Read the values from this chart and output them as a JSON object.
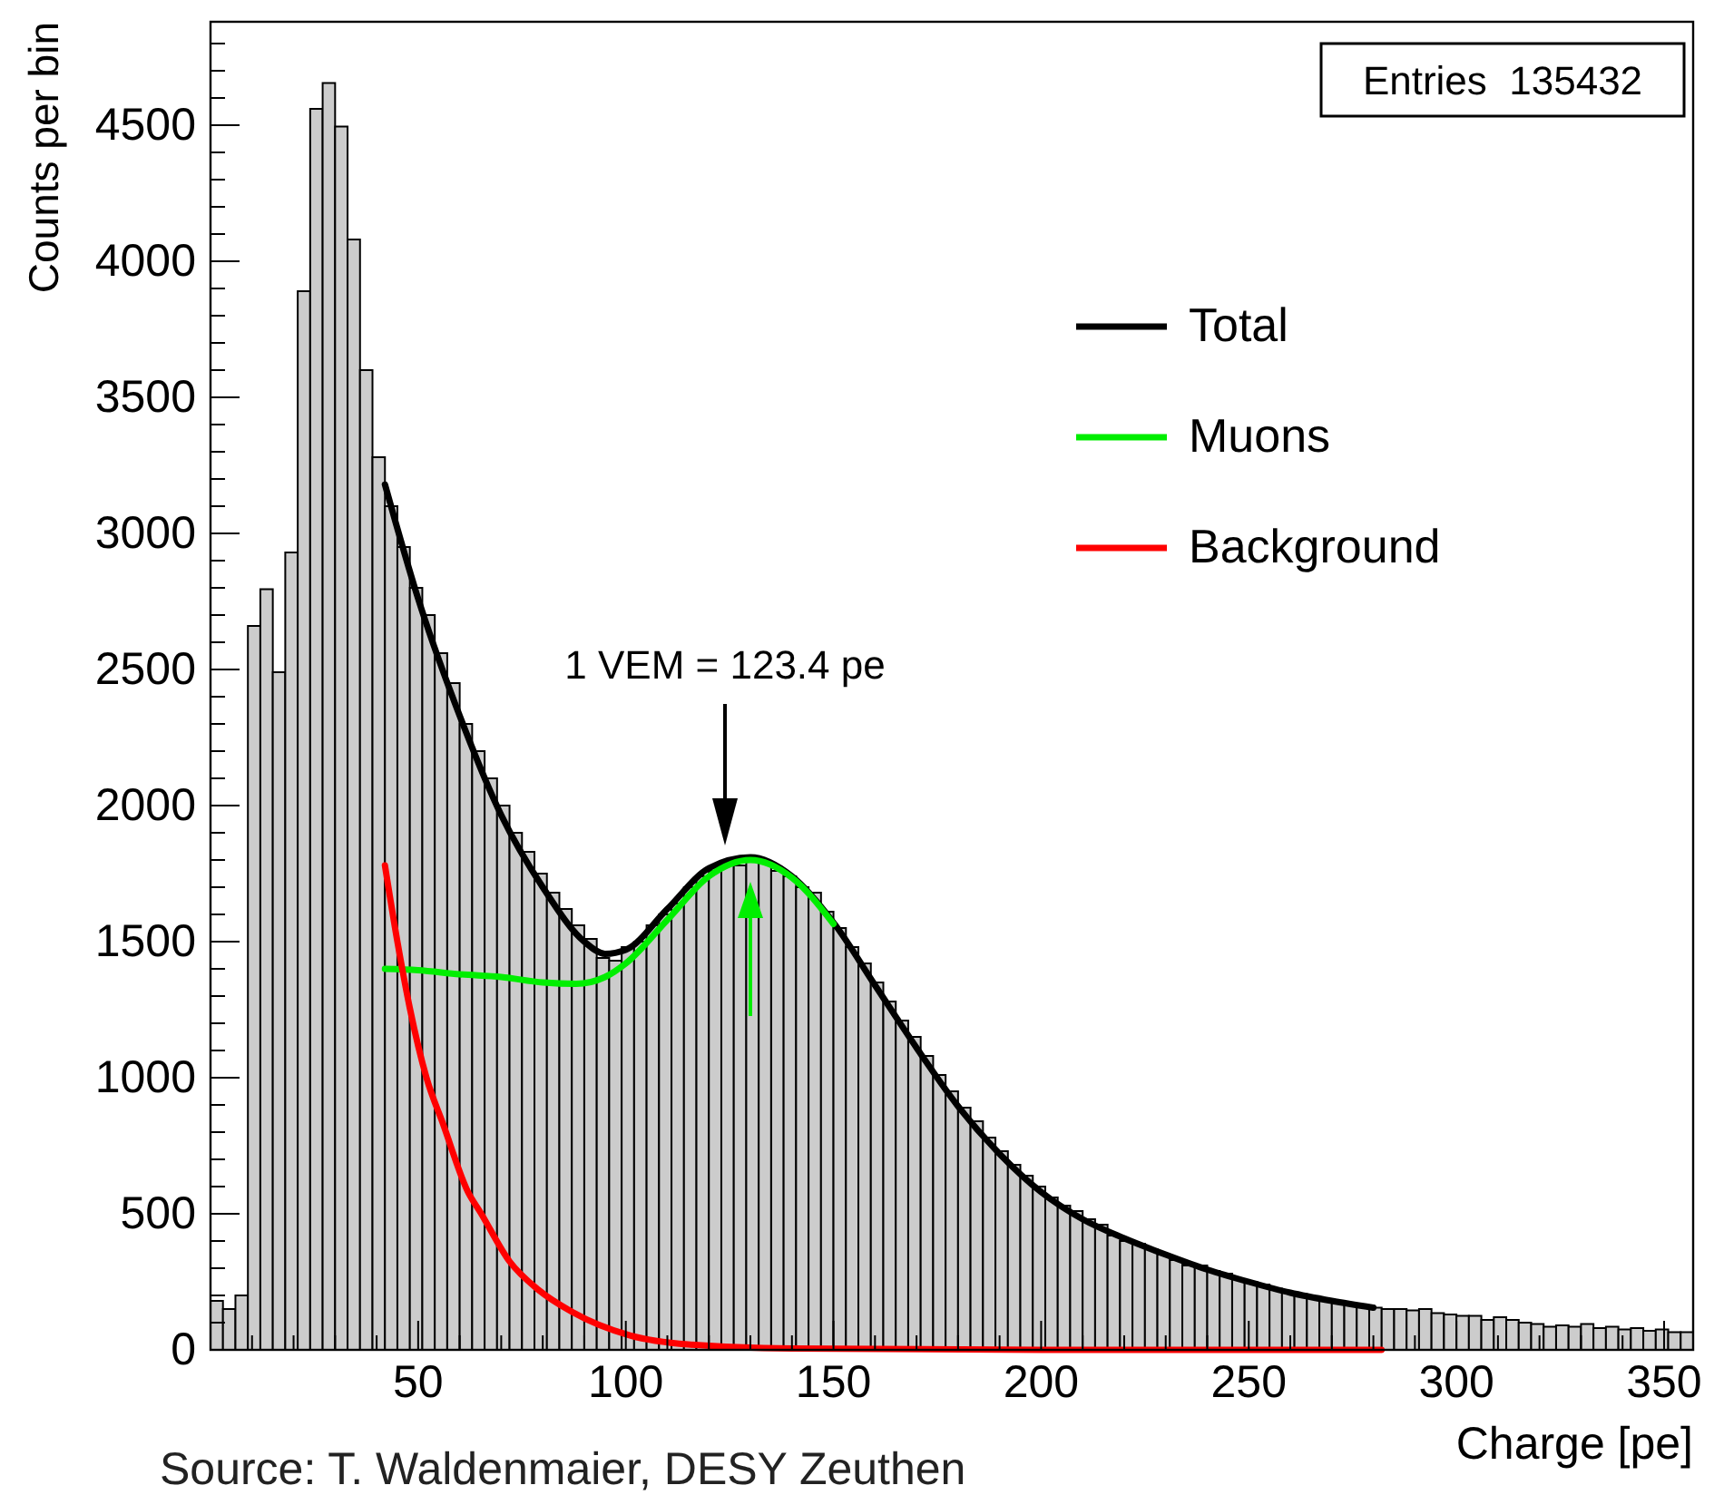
{
  "chart_data": {
    "type": "histogram",
    "xlabel": "Charge [pe]",
    "ylabel": "Counts per bin",
    "bins": [
      0,
      3,
      6,
      9,
      12,
      15,
      18,
      21,
      24,
      27,
      30,
      33,
      36,
      39,
      42,
      45,
      48,
      51,
      54,
      57,
      60,
      63,
      66,
      69,
      72,
      75,
      78,
      81,
      84,
      87,
      90,
      93,
      96,
      99,
      102,
      105,
      108,
      111,
      114,
      117,
      120,
      123,
      126,
      129,
      132,
      135,
      138,
      141,
      144,
      147,
      150,
      153,
      156,
      159,
      162,
      165,
      168,
      171,
      174,
      177,
      180,
      183,
      186,
      189,
      192,
      195,
      198,
      201,
      204,
      207,
      210,
      213,
      216,
      219,
      222,
      225,
      228,
      231,
      234,
      237,
      240,
      243,
      246,
      249,
      252,
      255,
      258,
      261,
      264,
      267,
      270,
      273,
      276,
      279,
      282,
      285,
      288,
      291,
      294,
      297,
      300,
      303,
      306,
      309,
      312,
      315,
      318,
      321,
      324,
      327,
      330,
      333,
      336,
      339,
      342,
      345,
      348,
      351,
      354,
      357
    ],
    "values": [
      180,
      150,
      200,
      2660,
      2795,
      2490,
      2930,
      3890,
      4560,
      4655,
      4495,
      4080,
      3600,
      3280,
      3100,
      2950,
      2800,
      2700,
      2560,
      2450,
      2300,
      2200,
      2100,
      2000,
      1900,
      1830,
      1750,
      1680,
      1620,
      1560,
      1510,
      1440,
      1430,
      1480,
      1500,
      1560,
      1600,
      1640,
      1700,
      1740,
      1760,
      1790,
      1780,
      1810,
      1790,
      1760,
      1740,
      1700,
      1680,
      1610,
      1550,
      1480,
      1420,
      1350,
      1280,
      1210,
      1150,
      1080,
      1010,
      950,
      890,
      840,
      780,
      730,
      680,
      640,
      600,
      560,
      530,
      510,
      480,
      460,
      420,
      400,
      390,
      370,
      350,
      330,
      310,
      310,
      290,
      280,
      260,
      250,
      240,
      225,
      210,
      205,
      195,
      185,
      180,
      170,
      160,
      155,
      150,
      150,
      145,
      150,
      135,
      130,
      125,
      125,
      110,
      120,
      110,
      100,
      95,
      85,
      90,
      85,
      95,
      80,
      85,
      75,
      80,
      70,
      75,
      65,
      65
    ],
    "color": "#cccccc",
    "series": [
      {
        "name": "Total",
        "type": "line",
        "color": "#000000",
        "x": [
          42,
          50,
          60,
          70,
          80,
          90,
          95,
          100,
          110,
          120,
          130,
          140,
          150,
          160,
          170,
          180,
          190,
          200,
          210,
          220,
          230,
          240,
          250,
          260,
          270,
          280
        ],
        "values": [
          3180,
          2760,
          2330,
          1965,
          1700,
          1500,
          1455,
          1470,
          1620,
          1770,
          1810,
          1740,
          1570,
          1340,
          1110,
          895,
          720,
          580,
          480,
          410,
          350,
          295,
          250,
          210,
          180,
          155
        ]
      },
      {
        "name": "Muons",
        "type": "line",
        "color": "#00ee00",
        "x": [
          42,
          50,
          60,
          70,
          80,
          88,
          95,
          100,
          110,
          120,
          130,
          140,
          150
        ],
        "values": [
          1400,
          1395,
          1380,
          1370,
          1350,
          1345,
          1370,
          1420,
          1580,
          1740,
          1800,
          1735,
          1565
        ]
      },
      {
        "name": "Background",
        "type": "line",
        "color": "#ff0000",
        "x": [
          42,
          45,
          48,
          52,
          56,
          62,
          65,
          72,
          79,
          87,
          101,
          115,
          140,
          200,
          282
        ],
        "values": [
          1780,
          1500,
          1255,
          1000,
          830,
          580,
          505,
          325,
          220,
          140,
          53,
          20,
          5,
          0,
          0
        ]
      }
    ],
    "xlim": [
      0,
      357
    ],
    "ylim": [
      0,
      4880
    ],
    "xticks": [
      {
        "value": 10,
        "label": null
      },
      {
        "value": 20,
        "label": null
      },
      {
        "value": 30,
        "label": null
      },
      {
        "value": 40,
        "label": null
      },
      50,
      {
        "value": 60,
        "label": null
      },
      {
        "value": 70,
        "label": null
      },
      {
        "value": 80,
        "label": null
      },
      {
        "value": 90,
        "label": null
      },
      100,
      {
        "value": 110,
        "label": null
      },
      {
        "value": 120,
        "label": null
      },
      {
        "value": 130,
        "label": null
      },
      {
        "value": 140,
        "label": null
      },
      150,
      {
        "value": 160,
        "label": null
      },
      {
        "value": 170,
        "label": null
      },
      {
        "value": 180,
        "label": null
      },
      {
        "value": 190,
        "label": null
      },
      200,
      {
        "value": 210,
        "label": null
      },
      {
        "value": 220,
        "label": null
      },
      {
        "value": 230,
        "label": null
      },
      {
        "value": 240,
        "label": null
      },
      250,
      {
        "value": 260,
        "label": null
      },
      {
        "value": 270,
        "label": null
      },
      {
        "value": 280,
        "label": null
      },
      {
        "value": 290,
        "label": null
      },
      300,
      {
        "value": 310,
        "label": null
      },
      {
        "value": 320,
        "label": null
      },
      {
        "value": 330,
        "label": null
      },
      {
        "value": 340,
        "label": null
      },
      350
    ],
    "yticks": [
      0,
      {
        "value": 100,
        "label": null
      },
      {
        "value": 200,
        "label": null
      },
      {
        "value": 300,
        "label": null
      },
      {
        "value": 400,
        "label": null
      },
      500,
      {
        "value": 600,
        "label": null
      },
      {
        "value": 700,
        "label": null
      },
      {
        "value": 800,
        "label": null
      },
      {
        "value": 900,
        "label": null
      },
      1000,
      {
        "value": 1100,
        "label": null
      },
      {
        "value": 1200,
        "label": null
      },
      {
        "value": 1300,
        "label": null
      },
      {
        "value": 1400,
        "label": null
      },
      1500,
      {
        "value": 1600,
        "label": null
      },
      {
        "value": 1700,
        "label": null
      },
      {
        "value": 1800,
        "label": null
      },
      {
        "value": 1900,
        "label": null
      },
      2000,
      {
        "value": 2100,
        "label": null
      },
      {
        "value": 2200,
        "label": null
      },
      {
        "value": 2300,
        "label": null
      },
      {
        "value": 2400,
        "label": null
      },
      2500,
      {
        "value": 2600,
        "label": null
      },
      {
        "value": 2700,
        "label": null
      },
      {
        "value": 2800,
        "label": null
      },
      {
        "value": 2900,
        "label": null
      },
      3000,
      {
        "value": 3100,
        "label": null
      },
      {
        "value": 3200,
        "label": null
      },
      {
        "value": 3300,
        "label": null
      },
      {
        "value": 3400,
        "label": null
      },
      3500,
      {
        "value": 3600,
        "label": null
      },
      {
        "value": 3700,
        "label": null
      },
      {
        "value": 3800,
        "label": null
      },
      {
        "value": 3900,
        "label": null
      },
      4000,
      {
        "value": 4100,
        "label": null
      },
      {
        "value": 4200,
        "label": null
      },
      {
        "value": 4300,
        "label": null
      },
      {
        "value": 4400,
        "label": null
      },
      4500,
      {
        "value": 4600,
        "label": null
      },
      {
        "value": 4700,
        "label": null
      },
      {
        "value": 4800,
        "label": null
      }
    ],
    "grid": false,
    "legend": "top right",
    "annotations": [
      "1 VEM = 123.4 pe",
      "Entries  135432",
      "Source: T. Waldenmaier, DESY Zeuthen"
    ]
  }
}
